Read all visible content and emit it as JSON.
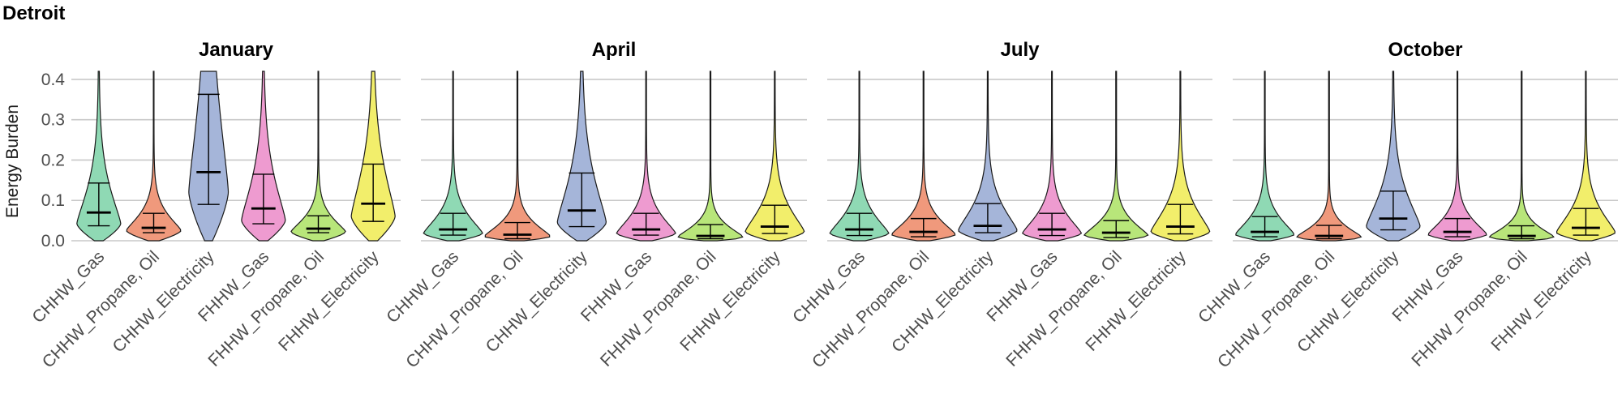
{
  "chart_data": {
    "type": "violin",
    "title": "Detroit",
    "ylabel": "Energy Burden",
    "ylim": [
      0,
      0.42
    ],
    "yticks": [
      "0.0",
      "0.1",
      "0.2",
      "0.3",
      "0.4"
    ],
    "ytick_values": [
      0,
      0.1,
      0.2,
      0.3,
      0.4
    ],
    "grid": true,
    "categories": [
      "CHHW_Gas",
      "CHHW_Propane, Oil",
      "CHHW_Electricity",
      "FHHW_Gas",
      "FHHW_Propane, Oil",
      "FHHW_Electricity"
    ],
    "colors": [
      "#8fd9b4",
      "#f0997c",
      "#a5b5d9",
      "#ee9bd0",
      "#b8e67a",
      "#f2ee6b"
    ],
    "panels": [
      {
        "name": "January",
        "series": [
          {
            "q1": 0.037,
            "median": 0.07,
            "q3": 0.143,
            "mode": 0.042,
            "maxwidth": 0.4
          },
          {
            "q1": 0.02,
            "median": 0.032,
            "q3": 0.068,
            "mode": 0.025,
            "maxwidth": 0.5
          },
          {
            "q1": 0.09,
            "median": 0.17,
            "q3": 0.363,
            "mode": 0.12,
            "maxwidth": 0.36
          },
          {
            "q1": 0.042,
            "median": 0.08,
            "q3": 0.165,
            "mode": 0.05,
            "maxwidth": 0.4
          },
          {
            "q1": 0.02,
            "median": 0.03,
            "q3": 0.062,
            "mode": 0.022,
            "maxwidth": 0.5
          },
          {
            "q1": 0.048,
            "median": 0.092,
            "q3": 0.19,
            "mode": 0.06,
            "maxwidth": 0.4
          }
        ]
      },
      {
        "name": "April",
        "series": [
          {
            "q1": 0.014,
            "median": 0.028,
            "q3": 0.068,
            "mode": 0.018,
            "maxwidth": 0.46
          },
          {
            "q1": 0.005,
            "median": 0.015,
            "q3": 0.045,
            "mode": 0.01,
            "maxwidth": 0.52
          },
          {
            "q1": 0.035,
            "median": 0.075,
            "q3": 0.168,
            "mode": 0.045,
            "maxwidth": 0.38
          },
          {
            "q1": 0.014,
            "median": 0.028,
            "q3": 0.068,
            "mode": 0.018,
            "maxwidth": 0.46
          },
          {
            "q1": 0.005,
            "median": 0.012,
            "q3": 0.04,
            "mode": 0.008,
            "maxwidth": 0.52
          },
          {
            "q1": 0.018,
            "median": 0.035,
            "q3": 0.088,
            "mode": 0.022,
            "maxwidth": 0.46
          }
        ]
      },
      {
        "name": "July",
        "series": [
          {
            "q1": 0.013,
            "median": 0.028,
            "q3": 0.068,
            "mode": 0.018,
            "maxwidth": 0.46
          },
          {
            "q1": 0.01,
            "median": 0.022,
            "q3": 0.055,
            "mode": 0.015,
            "maxwidth": 0.5
          },
          {
            "q1": 0.02,
            "median": 0.037,
            "q3": 0.092,
            "mode": 0.025,
            "maxwidth": 0.46
          },
          {
            "q1": 0.013,
            "median": 0.028,
            "q3": 0.068,
            "mode": 0.018,
            "maxwidth": 0.46
          },
          {
            "q1": 0.008,
            "median": 0.02,
            "q3": 0.05,
            "mode": 0.013,
            "maxwidth": 0.5
          },
          {
            "q1": 0.017,
            "median": 0.035,
            "q3": 0.09,
            "mode": 0.022,
            "maxwidth": 0.46
          }
        ]
      },
      {
        "name": "October",
        "series": [
          {
            "q1": 0.01,
            "median": 0.022,
            "q3": 0.06,
            "mode": 0.015,
            "maxwidth": 0.46
          },
          {
            "q1": 0.005,
            "median": 0.012,
            "q3": 0.038,
            "mode": 0.008,
            "maxwidth": 0.52
          },
          {
            "q1": 0.027,
            "median": 0.055,
            "q3": 0.123,
            "mode": 0.035,
            "maxwidth": 0.42
          },
          {
            "q1": 0.01,
            "median": 0.022,
            "q3": 0.055,
            "mode": 0.015,
            "maxwidth": 0.46
          },
          {
            "q1": 0.005,
            "median": 0.012,
            "q3": 0.037,
            "mode": 0.008,
            "maxwidth": 0.52
          },
          {
            "q1": 0.014,
            "median": 0.032,
            "q3": 0.08,
            "mode": 0.02,
            "maxwidth": 0.46
          }
        ]
      }
    ]
  }
}
